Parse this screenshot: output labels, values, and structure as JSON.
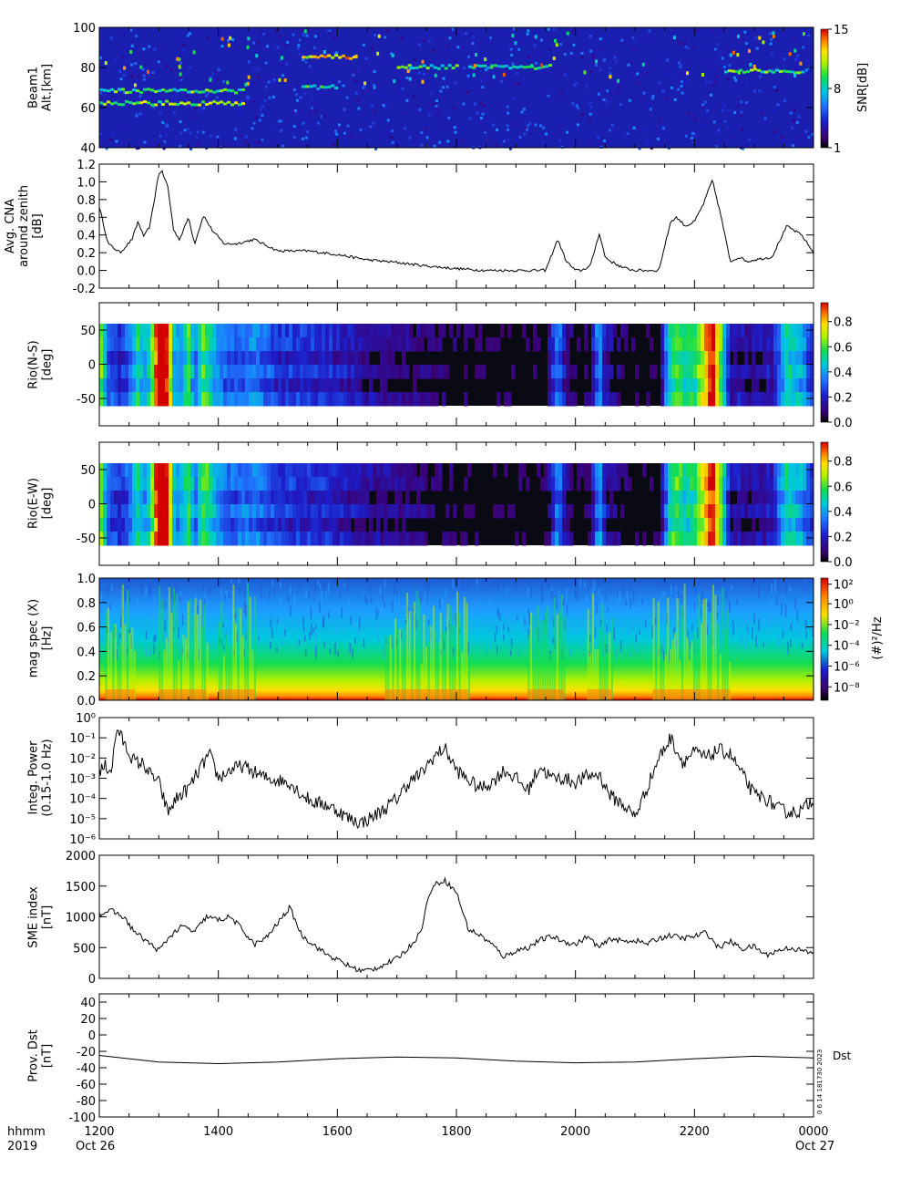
{
  "time_axis": {
    "row1_label": "hhmm",
    "row2_label": "2019",
    "ticks": [
      "1200",
      "1400",
      "1600",
      "1800",
      "2000",
      "2200",
      "0000"
    ],
    "start_date": "Oct 26",
    "end_date": "Oct 27"
  },
  "footer": {
    "stamp": "0 6 14 181730 2023",
    "dst_note": "Dst"
  },
  "colors": {
    "trace": "#000000",
    "spectral_scale": [
      "#000000",
      "#3b0070",
      "#1d1dc8",
      "#1e78ff",
      "#00c8dc",
      "#14dc50",
      "#b4f000",
      "#ffe000",
      "#ff8200",
      "#d20000"
    ]
  },
  "chart_data": [
    {
      "type": "heatmap",
      "panel": "beam1",
      "ylabel": "Beam1 Alt.[km]",
      "ylim": [
        40,
        100
      ],
      "yticks": [
        "40",
        "60",
        "80",
        "100"
      ],
      "colorbar": {
        "label": "SNR[dB]",
        "ticks": [
          "1",
          "8",
          "15"
        ],
        "range": [
          1,
          15
        ]
      },
      "features": [
        {
          "t_hr": [
            12.0,
            14.4
          ],
          "alt_km": 62,
          "snr": 10
        },
        {
          "t_hr": [
            12.0,
            14.4
          ],
          "alt_km": 68,
          "snr": 9
        },
        {
          "t_hr": [
            15.4,
            16.3
          ],
          "alt_km": 85,
          "snr": 12
        },
        {
          "t_hr": [
            15.4,
            16.0
          ],
          "alt_km": 70,
          "snr": 8
        },
        {
          "t_hr": [
            17.0,
            18.0
          ],
          "alt_km": 80,
          "snr": 9
        },
        {
          "t_hr": [
            18.2,
            19.6
          ],
          "alt_km": 80,
          "snr": 8
        },
        {
          "t_hr": [
            22.5,
            23.8
          ],
          "alt_km": 78,
          "snr": 9
        }
      ]
    },
    {
      "type": "line",
      "panel": "cna",
      "ylabel": "Avg. CNA around zenith [dB]",
      "ylim": [
        -0.2,
        1.2
      ],
      "yticks": [
        "-0.2",
        "0.0",
        "0.2",
        "0.4",
        "0.6",
        "0.8",
        "1.0",
        "1.2"
      ],
      "x_hr": [
        12.0,
        12.15,
        12.35,
        12.55,
        12.65,
        12.75,
        12.85,
        13.0,
        13.05,
        13.15,
        13.25,
        13.35,
        13.5,
        13.6,
        13.75,
        13.9,
        14.1,
        14.3,
        14.6,
        15.0,
        15.5,
        16.0,
        16.5,
        17.0,
        17.5,
        18.0,
        18.5,
        19.0,
        19.5,
        19.7,
        19.85,
        20.0,
        20.1,
        20.25,
        20.4,
        20.5,
        20.6,
        20.8,
        21.0,
        21.4,
        21.6,
        21.7,
        21.85,
        22.0,
        22.15,
        22.3,
        22.45,
        22.6,
        22.75,
        22.9,
        23.0,
        23.3,
        23.55,
        23.8,
        24.0
      ],
      "y": [
        0.72,
        0.3,
        0.2,
        0.35,
        0.55,
        0.38,
        0.5,
        1.1,
        1.12,
        0.95,
        0.45,
        0.35,
        0.6,
        0.3,
        0.62,
        0.45,
        0.3,
        0.3,
        0.35,
        0.22,
        0.22,
        0.18,
        0.12,
        0.09,
        0.05,
        0.02,
        0.0,
        0.0,
        0.0,
        0.35,
        0.1,
        0.0,
        0.0,
        0.05,
        0.42,
        0.15,
        0.1,
        0.03,
        0.0,
        0.0,
        0.55,
        0.6,
        0.5,
        0.55,
        0.75,
        1.02,
        0.6,
        0.1,
        0.15,
        0.1,
        0.12,
        0.15,
        0.5,
        0.4,
        0.2
      ]
    },
    {
      "type": "heatmap",
      "panel": "riometer-ns",
      "ylabel": "Rio(N-S) [deg]",
      "ylim": [
        -90,
        90
      ],
      "yticks": [
        "-50",
        "0",
        "50"
      ],
      "colorbar": {
        "ticks": [
          "0.0",
          "0.2",
          "0.4",
          "0.6",
          "0.8"
        ],
        "range": [
          0,
          0.95
        ]
      }
    },
    {
      "type": "heatmap",
      "panel": "riometer-ew",
      "ylabel": "Rio(E-W) [deg]",
      "ylim": [
        -90,
        90
      ],
      "yticks": [
        "-50",
        "0",
        "50"
      ],
      "colorbar": {
        "ticks": [
          "0.0",
          "0.2",
          "0.4",
          "0.6",
          "0.8"
        ],
        "range": [
          0,
          0.95
        ]
      }
    },
    {
      "type": "heatmap",
      "panel": "mag-spec",
      "ylabel": "mag spec (X) [Hz]",
      "ylim": [
        0,
        1.0
      ],
      "yticks": [
        "0.0",
        "0.2",
        "0.4",
        "0.6",
        "0.8",
        "1.0"
      ],
      "colorbar": {
        "label": "(#)²/Hz",
        "ticks": [
          "10²",
          "10⁰",
          "10⁻²",
          "10⁻⁴",
          "10⁻⁶",
          "10⁻⁸"
        ]
      }
    },
    {
      "type": "line",
      "panel": "integ-power",
      "ylabel": "Integ. Power (0.15-1.0 Hz)",
      "ylim_log10": [
        -6,
        0
      ],
      "yticks": [
        "10⁻⁶",
        "10⁻⁵",
        "10⁻⁴",
        "10⁻³",
        "10⁻²",
        "10⁻¹",
        "10⁰"
      ],
      "x_hr": [
        12.0,
        12.1,
        12.2,
        12.3,
        12.45,
        12.6,
        12.75,
        12.85,
        13.0,
        13.15,
        13.3,
        13.5,
        13.7,
        13.85,
        14.0,
        14.2,
        14.4,
        14.6,
        14.8,
        15.0,
        15.2,
        15.4,
        15.6,
        15.8,
        16.0,
        16.2,
        16.4,
        16.6,
        16.8,
        17.0,
        17.2,
        17.4,
        17.6,
        17.8,
        18.0,
        18.2,
        18.4,
        18.6,
        18.8,
        19.0,
        19.2,
        19.4,
        19.6,
        19.8,
        20.0,
        20.2,
        20.4,
        20.5,
        20.6,
        20.8,
        21.0,
        21.2,
        21.4,
        21.6,
        21.8,
        22.0,
        22.2,
        22.4,
        22.6,
        22.8,
        23.0,
        23.2,
        23.4,
        23.6,
        23.8,
        24.0
      ],
      "y_log10": [
        -2.7,
        -2.4,
        -2.6,
        -0.5,
        -1.5,
        -2.2,
        -2.3,
        -2.8,
        -3.2,
        -4.7,
        -4.0,
        -3.5,
        -2.5,
        -1.8,
        -3.0,
        -2.6,
        -2.4,
        -2.7,
        -3.0,
        -3.1,
        -3.2,
        -3.8,
        -4.2,
        -4.3,
        -4.6,
        -5.0,
        -5.2,
        -4.9,
        -4.5,
        -4.0,
        -3.2,
        -2.8,
        -2.0,
        -1.5,
        -2.6,
        -3.1,
        -3.5,
        -3.2,
        -2.6,
        -3.0,
        -3.6,
        -2.4,
        -3.0,
        -3.0,
        -3.2,
        -2.9,
        -2.8,
        -3.4,
        -3.9,
        -4.3,
        -4.9,
        -3.5,
        -2.0,
        -1.0,
        -2.2,
        -1.7,
        -2.0,
        -1.6,
        -1.8,
        -2.8,
        -3.8,
        -4.0,
        -4.5,
        -4.7,
        -4.6,
        -4.0
      ]
    },
    {
      "type": "line",
      "panel": "sme-index",
      "ylabel": "SME index [nT]",
      "ylim": [
        0,
        2000
      ],
      "yticks": [
        "0",
        "500",
        "1000",
        "1500",
        "2000"
      ],
      "x_hr": [
        12.0,
        12.2,
        12.4,
        12.6,
        12.8,
        13.0,
        13.2,
        13.4,
        13.6,
        13.8,
        14.0,
        14.2,
        14.4,
        14.6,
        14.8,
        15.0,
        15.2,
        15.4,
        15.6,
        15.8,
        16.0,
        16.2,
        16.4,
        16.6,
        16.8,
        17.0,
        17.2,
        17.4,
        17.5,
        17.6,
        17.8,
        18.0,
        18.2,
        18.4,
        18.6,
        18.8,
        19.0,
        19.2,
        19.4,
        19.6,
        19.8,
        20.0,
        20.2,
        20.4,
        20.6,
        20.8,
        21.0,
        21.2,
        21.4,
        21.6,
        21.8,
        22.0,
        22.2,
        22.4,
        22.6,
        22.8,
        23.0,
        23.2,
        23.4,
        23.6,
        23.8,
        24.0
      ],
      "y": [
        1050,
        1100,
        1000,
        750,
        600,
        450,
        700,
        850,
        750,
        1000,
        950,
        1000,
        800,
        550,
        650,
        900,
        1150,
        700,
        550,
        400,
        300,
        200,
        120,
        150,
        230,
        320,
        500,
        750,
        1200,
        1500,
        1600,
        1400,
        800,
        700,
        550,
        350,
        450,
        500,
        620,
        680,
        600,
        550,
        680,
        500,
        650,
        600,
        620,
        560,
        650,
        700,
        650,
        680,
        750,
        500,
        600,
        480,
        520,
        380,
        450,
        500,
        450,
        400
      ]
    },
    {
      "type": "line",
      "panel": "dst",
      "ylabel": "Prov. Dst [nT]",
      "ylim": [
        -100,
        50
      ],
      "yticks": [
        "-100",
        "-80",
        "-60",
        "-40",
        "-20",
        "0",
        "20",
        "40"
      ],
      "x_hr": [
        12.0,
        13.0,
        14.0,
        15.0,
        16.0,
        17.0,
        18.0,
        19.0,
        20.0,
        21.0,
        22.0,
        23.0,
        24.0
      ],
      "y": [
        -25,
        -33,
        -35,
        -33,
        -29,
        -27,
        -28,
        -32,
        -34,
        -33,
        -29,
        -26,
        -28
      ]
    }
  ],
  "panels": [
    {
      "label_lines": [
        "Beam1",
        "Alt.[km]"
      ],
      "yticks": [
        [
          "40",
          0
        ],
        [
          "60",
          0.3333
        ],
        [
          "80",
          0.6667
        ],
        [
          "100",
          1.0
        ]
      ],
      "colorbar_label": "SNR[dB]",
      "cbticks": [
        [
          "1",
          0.0
        ],
        [
          "8",
          0.5
        ],
        [
          "15",
          1.0
        ]
      ]
    },
    {
      "label_lines": [
        "Avg. CNA",
        "around zenith",
        "[dB]"
      ],
      "yticks": [
        [
          "-0.2",
          0.0
        ],
        [
          "0.0",
          0.1429
        ],
        [
          "0.2",
          0.2857
        ],
        [
          "0.4",
          0.4286
        ],
        [
          "0.6",
          0.5714
        ],
        [
          "0.8",
          0.7143
        ],
        [
          "1.0",
          0.8571
        ],
        [
          "1.2",
          1.0
        ]
      ]
    },
    {
      "label_lines": [
        "Rio(N-S)",
        "[deg]"
      ],
      "yticks": [
        [
          "-50",
          0.2222
        ],
        [
          "0",
          0.5
        ],
        [
          "50",
          0.7778
        ]
      ],
      "cbticks": [
        [
          "0.0",
          0.0
        ],
        [
          "0.2",
          0.2105
        ],
        [
          "0.4",
          0.4211
        ],
        [
          "0.6",
          0.6316
        ],
        [
          "0.8",
          0.8421
        ]
      ]
    },
    {
      "label_lines": [
        "Rio(E-W)",
        "[deg]"
      ],
      "yticks": [
        [
          "-50",
          0.2222
        ],
        [
          "0",
          0.5
        ],
        [
          "50",
          0.7778
        ]
      ],
      "cbticks": [
        [
          "0.0",
          0.0
        ],
        [
          "0.2",
          0.2105
        ],
        [
          "0.4",
          0.4211
        ],
        [
          "0.6",
          0.6316
        ],
        [
          "0.8",
          0.8421
        ]
      ]
    },
    {
      "label_lines": [
        "mag spec (X)",
        "[Hz]"
      ],
      "yticks": [
        [
          "0.0",
          0.0
        ],
        [
          "0.2",
          0.2
        ],
        [
          "0.4",
          0.4
        ],
        [
          "0.6",
          0.6
        ],
        [
          "0.8",
          0.8
        ],
        [
          "1.0",
          1.0
        ]
      ],
      "colorbar_label": "(#)²/Hz",
      "cbticks": [
        [
          "10²",
          0.95
        ],
        [
          "10⁰",
          0.79
        ],
        [
          "10⁻²",
          0.62
        ],
        [
          "10⁻⁴",
          0.45
        ],
        [
          "10⁻⁶",
          0.28
        ],
        [
          "10⁻⁸",
          0.11
        ]
      ]
    },
    {
      "label_lines": [
        "Integ. Power",
        "(0.15-1.0 Hz)"
      ],
      "yticks": [
        [
          "10⁻⁶",
          0.0
        ],
        [
          "10⁻⁵",
          0.1667
        ],
        [
          "10⁻⁴",
          0.3333
        ],
        [
          "10⁻³",
          0.5
        ],
        [
          "10⁻²",
          0.6667
        ],
        [
          "10⁻¹",
          0.8333
        ],
        [
          "10⁰",
          1.0
        ]
      ]
    },
    {
      "label_lines": [
        "SME index",
        "[nT]"
      ],
      "yticks": [
        [
          "0",
          0.0
        ],
        [
          "500",
          0.25
        ],
        [
          "1000",
          0.5
        ],
        [
          "1500",
          0.75
        ],
        [
          "2000",
          1.0
        ]
      ]
    },
    {
      "label_lines": [
        "Prov. Dst",
        "[nT]"
      ],
      "yticks": [
        [
          "-100",
          0.0
        ],
        [
          "-80",
          0.1333
        ],
        [
          "-60",
          0.2667
        ],
        [
          "-40",
          0.4
        ],
        [
          "-20",
          0.5333
        ],
        [
          "0",
          0.6667
        ],
        [
          "20",
          0.8
        ],
        [
          "40",
          0.9333
        ]
      ]
    }
  ]
}
